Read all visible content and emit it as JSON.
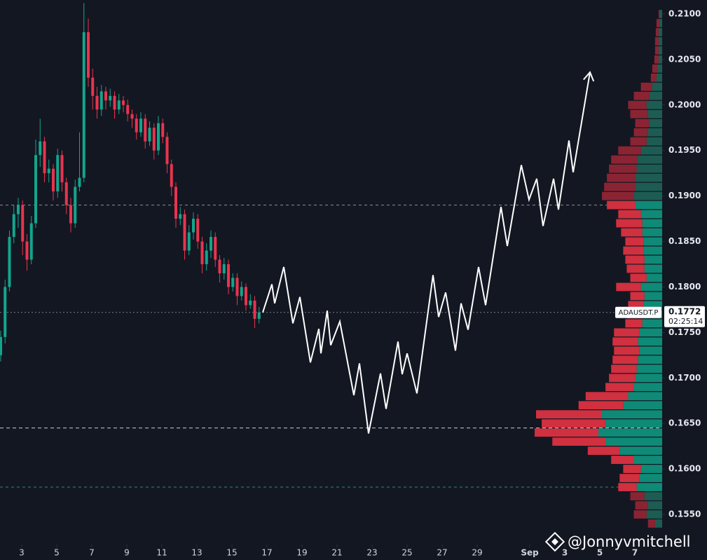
{
  "chart_data": {
    "type": "candlestick",
    "symbol": "ADAUSDT.P",
    "countdown": "02:25:14",
    "watermark": "@Jonnyvmitchell",
    "xlim": [
      1.76,
      39.56
    ],
    "ylim": [
      0.15184,
      0.21154
    ],
    "xticks": [
      3,
      5,
      7,
      9,
      11,
      13,
      15,
      17,
      19,
      21,
      23,
      25,
      27,
      29,
      {
        "value": 32,
        "label": "Sep"
      },
      {
        "value": 34,
        "label": "3"
      },
      {
        "value": 36,
        "label": "5"
      },
      {
        "value": 38,
        "label": "7"
      }
    ],
    "yticks": [
      {
        "value": 0.155,
        "label": "0.1550"
      },
      {
        "value": 0.16,
        "label": "0.1600"
      },
      {
        "value": 0.165,
        "label": "0.1650"
      },
      {
        "value": 0.17,
        "label": "0.1700"
      },
      {
        "value": 0.175,
        "label": "0.1750"
      },
      {
        "value": 0.18,
        "label": "0.1800"
      },
      {
        "value": 0.185,
        "label": "0.1850"
      },
      {
        "value": 0.19,
        "label": "0.1900"
      },
      {
        "value": 0.195,
        "label": "0.1950"
      },
      {
        "value": 0.2,
        "label": "0.2000"
      },
      {
        "value": 0.205,
        "label": "0.2050"
      },
      {
        "value": 0.21,
        "label": "0.2100"
      }
    ],
    "colors": {
      "up": "#13a58c",
      "down": "#e8344e",
      "projection": "#ffffff",
      "background": "#131722"
    },
    "x": [
      1.8,
      2.05,
      2.3,
      2.55,
      2.8,
      3.05,
      3.3,
      3.55,
      3.8,
      4.05,
      4.3,
      4.55,
      4.8,
      5.05,
      5.3,
      5.55,
      5.8,
      6.05,
      6.3,
      6.55,
      6.8,
      7.05,
      7.3,
      7.55,
      7.8,
      8.05,
      8.3,
      8.55,
      8.8,
      9.05,
      9.3,
      9.55,
      9.8,
      10.05,
      10.3,
      10.55,
      10.8,
      11.05,
      11.3,
      11.55,
      11.8,
      12.05,
      12.3,
      12.55,
      12.8,
      13.05,
      13.3,
      13.55,
      13.8,
      14.05,
      14.3,
      14.55,
      14.8,
      15.05,
      15.3,
      15.55,
      15.8,
      16.05,
      16.3,
      16.55
    ],
    "ohlc": [
      [
        0.1725,
        0.1752,
        0.1718,
        0.1745
      ],
      [
        0.1745,
        0.1808,
        0.1738,
        0.18
      ],
      [
        0.18,
        0.1862,
        0.1795,
        0.1855
      ],
      [
        0.1855,
        0.189,
        0.1848,
        0.188
      ],
      [
        0.188,
        0.1898,
        0.1865,
        0.189
      ],
      [
        0.189,
        0.1895,
        0.1835,
        0.185
      ],
      [
        0.185,
        0.1858,
        0.1818,
        0.183
      ],
      [
        0.183,
        0.1878,
        0.1825,
        0.187
      ],
      [
        0.187,
        0.1962,
        0.1865,
        0.1945
      ],
      [
        0.1945,
        0.1985,
        0.1932,
        0.196
      ],
      [
        0.196,
        0.1965,
        0.1915,
        0.1925
      ],
      [
        0.1925,
        0.194,
        0.1915,
        0.193
      ],
      [
        0.193,
        0.1935,
        0.1895,
        0.1905
      ],
      [
        0.1905,
        0.1952,
        0.1898,
        0.1945
      ],
      [
        0.1945,
        0.195,
        0.1905,
        0.1915
      ],
      [
        0.1915,
        0.192,
        0.188,
        0.189
      ],
      [
        0.189,
        0.1898,
        0.186,
        0.187
      ],
      [
        0.187,
        0.1918,
        0.1865,
        0.191
      ],
      [
        0.191,
        0.197,
        0.1905,
        0.192
      ],
      [
        0.192,
        0.2112,
        0.1915,
        0.208
      ],
      [
        0.208,
        0.2095,
        0.202,
        0.203
      ],
      [
        0.203,
        0.204,
        0.1995,
        0.201
      ],
      [
        0.201,
        0.202,
        0.1985,
        0.1995
      ],
      [
        0.1995,
        0.2022,
        0.1988,
        0.2015
      ],
      [
        0.2015,
        0.202,
        0.1995,
        0.2005
      ],
      [
        0.2005,
        0.2018,
        0.1998,
        0.201
      ],
      [
        0.201,
        0.2015,
        0.1985,
        0.1995
      ],
      [
        0.1995,
        0.2012,
        0.199,
        0.2005
      ],
      [
        0.2005,
        0.201,
        0.1992,
        0.2
      ],
      [
        0.2,
        0.2006,
        0.1982,
        0.199
      ],
      [
        0.199,
        0.1995,
        0.1975,
        0.1985
      ],
      [
        0.1985,
        0.199,
        0.1962,
        0.197
      ],
      [
        0.197,
        0.1992,
        0.1965,
        0.1985
      ],
      [
        0.1985,
        0.199,
        0.1952,
        0.196
      ],
      [
        0.196,
        0.1982,
        0.1955,
        0.1975
      ],
      [
        0.1975,
        0.198,
        0.194,
        0.195
      ],
      [
        0.195,
        0.1988,
        0.1945,
        0.198
      ],
      [
        0.198,
        0.1985,
        0.1958,
        0.1965
      ],
      [
        0.1965,
        0.197,
        0.1925,
        0.1935
      ],
      [
        0.1935,
        0.194,
        0.19,
        0.191
      ],
      [
        0.191,
        0.1915,
        0.1865,
        0.1875
      ],
      [
        0.1875,
        0.1888,
        0.1868,
        0.188
      ],
      [
        0.188,
        0.1885,
        0.183,
        0.184
      ],
      [
        0.184,
        0.1868,
        0.1835,
        0.186
      ],
      [
        0.186,
        0.1882,
        0.1852,
        0.1875
      ],
      [
        0.1875,
        0.188,
        0.1842,
        0.185
      ],
      [
        0.185,
        0.1855,
        0.1815,
        0.1825
      ],
      [
        0.1825,
        0.1848,
        0.1818,
        0.184
      ],
      [
        0.184,
        0.1862,
        0.1832,
        0.1855
      ],
      [
        0.1855,
        0.186,
        0.1822,
        0.183
      ],
      [
        0.183,
        0.1835,
        0.1805,
        0.1815
      ],
      [
        0.1815,
        0.1832,
        0.1808,
        0.1825
      ],
      [
        0.1825,
        0.183,
        0.1792,
        0.18
      ],
      [
        0.18,
        0.1815,
        0.1795,
        0.181
      ],
      [
        0.181,
        0.1815,
        0.178,
        0.179
      ],
      [
        0.179,
        0.1806,
        0.1785,
        0.18
      ],
      [
        0.18,
        0.1804,
        0.1774,
        0.178
      ],
      [
        0.178,
        0.1792,
        0.1776,
        0.1785
      ],
      [
        0.1785,
        0.179,
        0.1755,
        0.1765
      ],
      [
        0.1765,
        0.1778,
        0.176,
        0.1772
      ]
    ],
    "projection": {
      "x": [
        16.76,
        17.28,
        17.44,
        17.96,
        18.48,
        18.88,
        19.48,
        19.96,
        20.08,
        20.44,
        20.64,
        21.16,
        21.96,
        22.28,
        22.8,
        23.48,
        23.8,
        24.48,
        24.72,
        25.0,
        25.56,
        26.48,
        26.8,
        27.2,
        27.76,
        28.08,
        28.48,
        29.08,
        29.48,
        30.36,
        30.72,
        31.52,
        31.96,
        32.4,
        32.76,
        33.36,
        33.64,
        34.24,
        34.48,
        35.44
      ],
      "y": [
        0.1772,
        0.1803,
        0.1782,
        0.1822,
        0.176,
        0.1789,
        0.1717,
        0.1754,
        0.1727,
        0.1774,
        0.1736,
        0.1762,
        0.1681,
        0.1716,
        0.1639,
        0.1705,
        0.1666,
        0.174,
        0.1704,
        0.1727,
        0.1683,
        0.1813,
        0.1767,
        0.1794,
        0.173,
        0.1782,
        0.1753,
        0.1822,
        0.178,
        0.1888,
        0.1845,
        0.1934,
        0.1896,
        0.1919,
        0.1867,
        0.1919,
        0.1885,
        0.1961,
        0.1926,
        0.2036
      ]
    },
    "volume_profile": {
      "levels": [
        0.21,
        0.209,
        0.208,
        0.207,
        0.206,
        0.205,
        0.204,
        0.203,
        0.202,
        0.201,
        0.2,
        0.199,
        0.198,
        0.197,
        0.196,
        0.195,
        0.194,
        0.193,
        0.192,
        0.191,
        0.19,
        0.189,
        0.188,
        0.187,
        0.186,
        0.185,
        0.184,
        0.183,
        0.182,
        0.181,
        0.18,
        0.179,
        0.178,
        0.177,
        0.176,
        0.175,
        0.174,
        0.173,
        0.172,
        0.171,
        0.17,
        0.169,
        0.168,
        0.167,
        0.166,
        0.165,
        0.164,
        0.163,
        0.162,
        0.161,
        0.16,
        0.159,
        0.158,
        0.157,
        0.156,
        0.155,
        0.154
      ],
      "buy": [
        3,
        4,
        5,
        5,
        5,
        5,
        7,
        8,
        14,
        18,
        22,
        20,
        18,
        20,
        22,
        30,
        35,
        36,
        38,
        38,
        40,
        38,
        30,
        28,
        28,
        26,
        26,
        25,
        25,
        22,
        30,
        25,
        26,
        28,
        28,
        32,
        34,
        32,
        34,
        36,
        38,
        40,
        48,
        55,
        85,
        80,
        90,
        80,
        60,
        40,
        30,
        32,
        36,
        25,
        20,
        22,
        10
      ],
      "sell": [
        2,
        4,
        4,
        5,
        5,
        6,
        7,
        8,
        16,
        22,
        26,
        25,
        20,
        20,
        23,
        32,
        37,
        39,
        40,
        44,
        45,
        40,
        32,
        37,
        30,
        26,
        29,
        27,
        25,
        23,
        35,
        20,
        22,
        22,
        24,
        36,
        36,
        36,
        36,
        36,
        37,
        40,
        60,
        63,
        93,
        90,
        90,
        75,
        45,
        32,
        25,
        28,
        26,
        20,
        18,
        18,
        10
      ],
      "value_area": [
        0.158,
        0.189
      ],
      "poc": 0.1645,
      "colors": {
        "buy": "#0f8a76",
        "sell": "#d0303f",
        "buy_outside": "#1d5c52",
        "sell_outside": "#8a2433",
        "vah": "#8a8f99",
        "poc": "#c8ccd4",
        "val": "#1f8f7e"
      }
    }
  }
}
